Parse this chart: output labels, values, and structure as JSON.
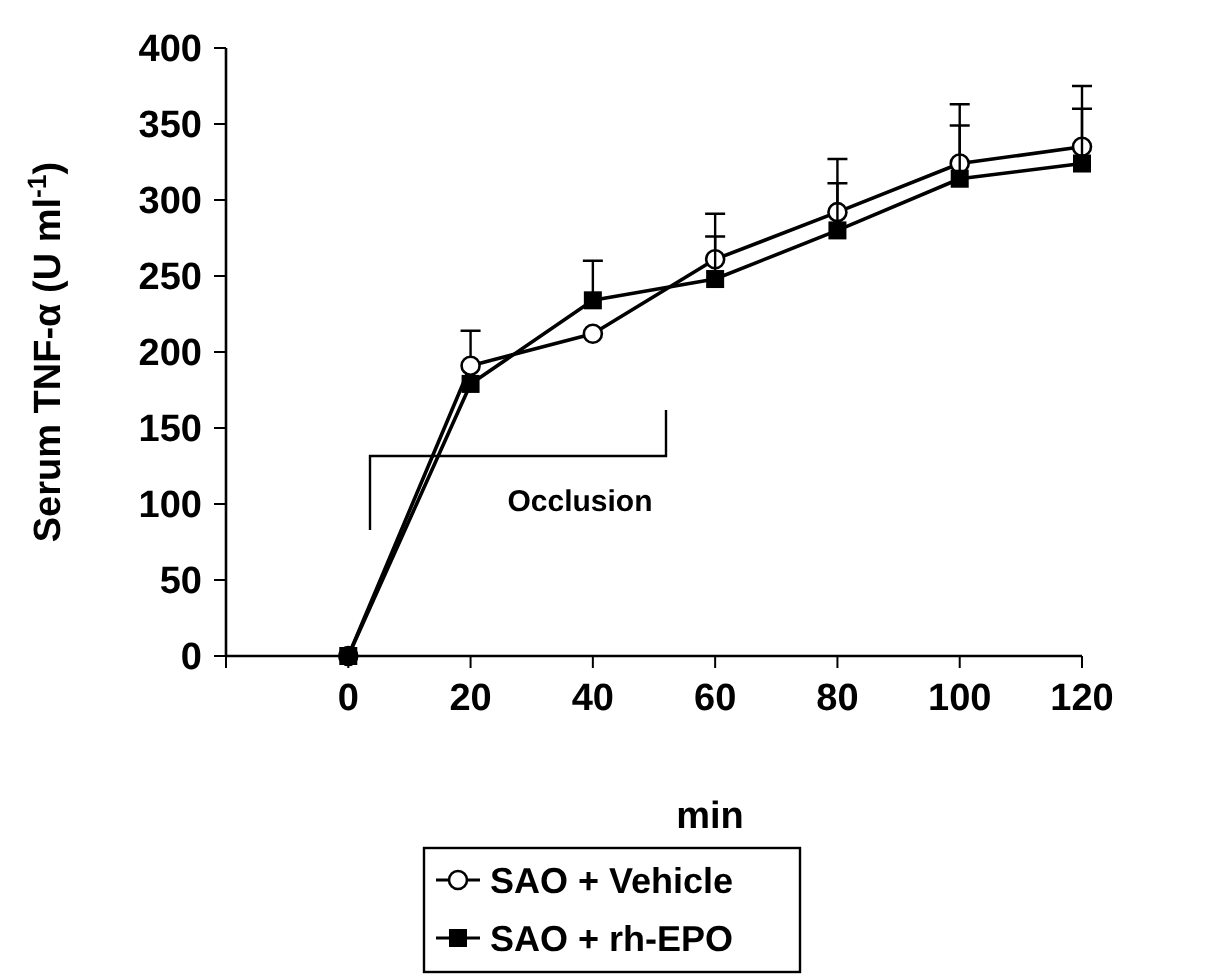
{
  "chart_data": {
    "type": "line",
    "xlabel": "min",
    "ylabel": "Serum TNF-α (U ml$^{-1}$)",
    "x": [
      0,
      20,
      40,
      60,
      80,
      100,
      120
    ],
    "series": [
      {
        "name": "SAO + Vehicle",
        "color": "#000000",
        "marker": "circle",
        "values": [
          0,
          191,
          212,
          261,
          292,
          324,
          335
        ],
        "errors": [
          null,
          [
            191,
            214
          ],
          null,
          [
            261,
            291
          ],
          [
            292,
            327
          ],
          [
            324,
            363
          ],
          [
            335,
            375
          ]
        ]
      },
      {
        "name": "SAO + rh-EPO",
        "color": "#000000",
        "marker": "square",
        "values": [
          0,
          179,
          234,
          248,
          280,
          314,
          324
        ],
        "errors": [
          null,
          null,
          [
            234,
            260
          ],
          [
            248,
            276
          ],
          [
            280,
            311
          ],
          [
            314,
            349
          ],
          [
            324,
            360
          ]
        ]
      }
    ],
    "xlim": [
      -20,
      120
    ],
    "xticks": [
      {
        "value": -20,
        "label": null
      },
      0,
      20,
      40,
      60,
      80,
      100,
      120
    ],
    "ylim": [
      0,
      400
    ],
    "yticks": [
      0,
      50,
      100,
      150,
      200,
      250,
      300,
      350,
      400
    ],
    "annotations": [
      "Occlusion"
    ],
    "grid": false,
    "legend": "bottom",
    "line_style": "solid"
  }
}
